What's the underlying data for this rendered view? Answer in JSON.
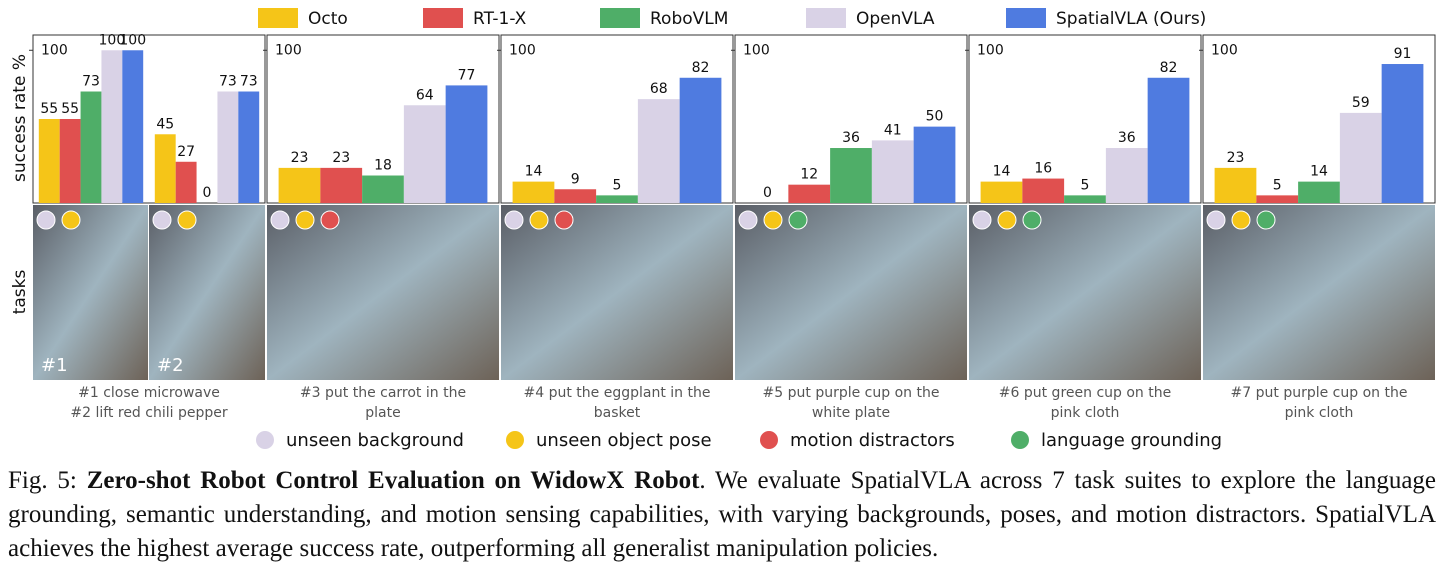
{
  "legend": [
    {
      "name": "Octo",
      "color": "#f5c518"
    },
    {
      "name": "RT-1-X",
      "color": "#e0504f"
    },
    {
      "name": "RoboVLM",
      "color": "#4fae68"
    },
    {
      "name": "OpenVLA",
      "color": "#d9d2e6"
    },
    {
      "name": "SpatialVLA (Ours)",
      "color": "#4f7be0"
    }
  ],
  "y_axis_label": "success rate %",
  "tasks_label": "tasks",
  "chart_data": [
    {
      "type": "bar",
      "categories": [
        "#1",
        "#2"
      ],
      "series": [
        {
          "values": [
            55,
            45
          ]
        },
        {
          "values": [
            55,
            27
          ]
        },
        {
          "values": [
            73,
            0
          ]
        },
        {
          "values": [
            100,
            73
          ]
        },
        {
          "values": [
            100,
            73
          ]
        }
      ],
      "ylim": [
        0,
        110
      ],
      "yticks": [
        100
      ],
      "tasks": [
        "#1 close microwave",
        "#2 lift red chili pepper"
      ]
    },
    {
      "type": "bar",
      "categories": [
        null
      ],
      "series": [
        {
          "values": [
            23
          ]
        },
        {
          "values": [
            23
          ]
        },
        {
          "values": [
            18
          ]
        },
        {
          "values": [
            64
          ]
        },
        {
          "values": [
            77
          ]
        }
      ],
      "ylim": [
        0,
        110
      ],
      "yticks": [
        100
      ],
      "tasks": [
        "#3 put the carrot in the plate"
      ]
    },
    {
      "type": "bar",
      "categories": [
        null
      ],
      "series": [
        {
          "values": [
            14
          ]
        },
        {
          "values": [
            9
          ]
        },
        {
          "values": [
            5
          ]
        },
        {
          "values": [
            68
          ]
        },
        {
          "values": [
            82
          ]
        }
      ],
      "ylim": [
        0,
        110
      ],
      "yticks": [
        100
      ],
      "tasks": [
        "#4 put the eggplant in the basket"
      ]
    },
    {
      "type": "bar",
      "categories": [
        null
      ],
      "series": [
        {
          "values": [
            0
          ]
        },
        {
          "values": [
            12
          ]
        },
        {
          "values": [
            36
          ]
        },
        {
          "values": [
            41
          ]
        },
        {
          "values": [
            50
          ]
        }
      ],
      "ylim": [
        0,
        110
      ],
      "yticks": [
        100
      ],
      "tasks": [
        "#5 put purple cup on the white plate"
      ]
    },
    {
      "type": "bar",
      "categories": [
        null
      ],
      "series": [
        {
          "values": [
            14
          ]
        },
        {
          "values": [
            16
          ]
        },
        {
          "values": [
            5
          ]
        },
        {
          "values": [
            36
          ]
        },
        {
          "values": [
            82
          ]
        }
      ],
      "ylim": [
        0,
        110
      ],
      "yticks": [
        100
      ],
      "tasks": [
        "#6 put green cup on the pink cloth"
      ]
    },
    {
      "type": "bar",
      "categories": [
        null
      ],
      "series": [
        {
          "values": [
            23
          ]
        },
        {
          "values": [
            5
          ]
        },
        {
          "values": [
            14
          ]
        },
        {
          "values": [
            59
          ]
        },
        {
          "values": [
            91
          ]
        }
      ],
      "ylim": [
        0,
        110
      ],
      "yticks": [
        100
      ],
      "tasks": [
        "#7 put purple cup on the pink cloth"
      ]
    }
  ],
  "conditions": [
    {
      "label": "unseen background",
      "color": "#d9d2e6"
    },
    {
      "label": "unseen object pose",
      "color": "#f5c518"
    },
    {
      "label": "motion distractors",
      "color": "#e0504f"
    },
    {
      "label": "language grounding",
      "color": "#4fae68"
    }
  ],
  "caption": {
    "label": "Fig. 5:",
    "title": "Zero-shot Robot Control Evaluation on WidowX Robot",
    "text": ". We evaluate SpatialVLA across 7 task suites to explore the language grounding, semantic understanding, and motion sensing capabilities, with varying backgrounds, poses, and motion distractors. SpatialVLA achieves the highest average success rate, outperforming all generalist manipulation policies."
  }
}
